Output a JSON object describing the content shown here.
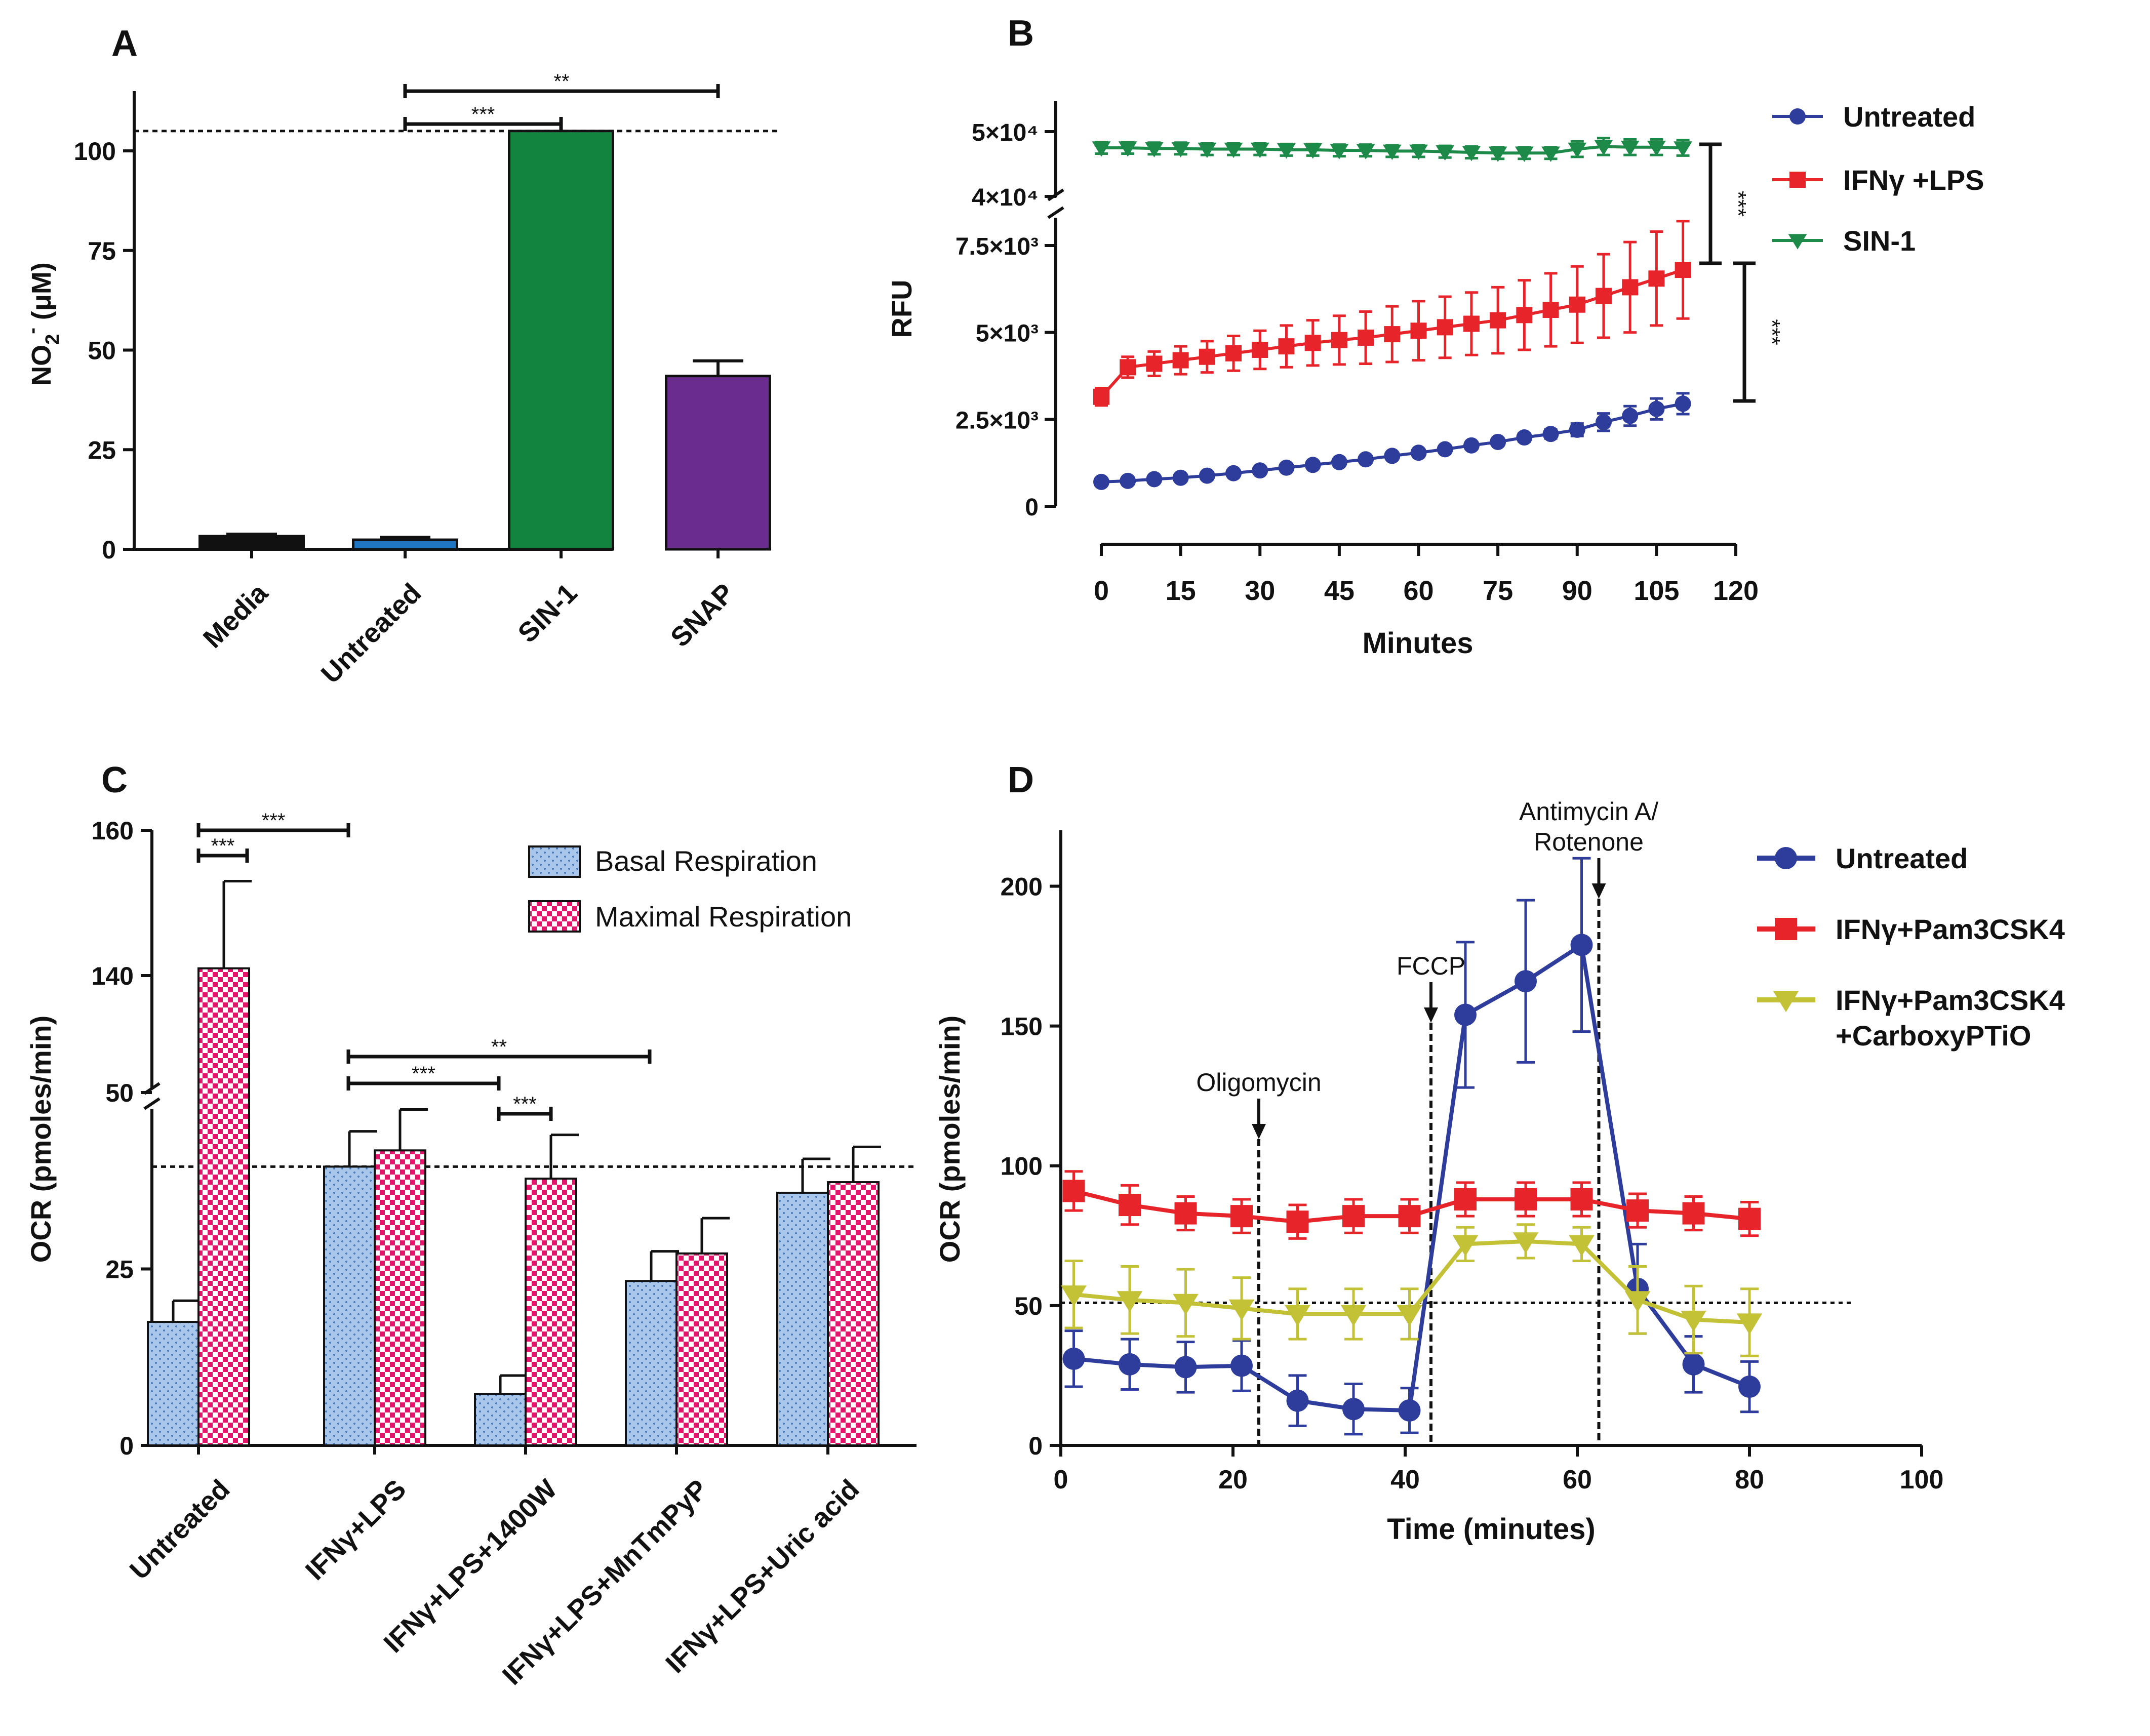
{
  "colors": {
    "black": "#111111",
    "blue": "#1F77C4",
    "green": "#12843F",
    "purple": "#6B2C8F",
    "navy": "#2E3C9C",
    "red": "#E8242B",
    "seagreen": "#1E8A4A",
    "olive": "#C3C237",
    "basal": "#A9C7EA",
    "maximal": "#E3146A"
  },
  "chart_data": [
    {
      "panel": "A",
      "type": "bar",
      "ylabel": "NO2- (μM)",
      "ylabel_main": "NO",
      "ylabel_sub": "2",
      "ylabel_sup": "-",
      "ylabel_unit": " (μM)",
      "ylim": [
        0,
        115
      ],
      "yticks": [
        0,
        25,
        50,
        75,
        100
      ],
      "categories": [
        "Media",
        "Untreated",
        "SIN-1",
        "SNAP"
      ],
      "values": [
        3.3,
        2.4,
        105,
        43.5
      ],
      "errors": [
        0.5,
        0.6,
        0,
        3.8
      ],
      "bar_colors": [
        "#111111",
        "#1F77C4",
        "#12843F",
        "#6B2C8F"
      ],
      "reference_line": 105,
      "significance": [
        {
          "from": "Untreated",
          "to": "SIN-1",
          "label": "***"
        },
        {
          "from": "Untreated",
          "to": "SNAP",
          "label": "**"
        }
      ]
    },
    {
      "panel": "B",
      "type": "line",
      "xlabel": "Minutes",
      "ylabel": "RFU",
      "xlim": [
        0,
        120
      ],
      "xticks": [
        0,
        15,
        30,
        45,
        60,
        75,
        90,
        105,
        120
      ],
      "axis_break": "between 7.5×10³ and 4×10⁴",
      "yticks_lower": [
        {
          "value": 0,
          "label": "0"
        },
        {
          "value": 2500,
          "label": "2.5×10³"
        },
        {
          "value": 5000,
          "label": "5×10³"
        },
        {
          "value": 7500,
          "label": "7.5×10³"
        }
      ],
      "yticks_upper": [
        {
          "value": 40000,
          "label": "4×10⁴"
        },
        {
          "value": 50000,
          "label": "5×10⁴"
        }
      ],
      "x": [
        0,
        5,
        10,
        15,
        20,
        25,
        30,
        35,
        40,
        45,
        50,
        55,
        60,
        65,
        70,
        75,
        80,
        85,
        90,
        95,
        100,
        105,
        110
      ],
      "series": [
        {
          "name": "Untreated",
          "marker": "circle",
          "values": [
            700,
            730,
            780,
            820,
            880,
            950,
            1030,
            1110,
            1190,
            1270,
            1350,
            1450,
            1540,
            1640,
            1750,
            1850,
            1980,
            2080,
            2200,
            2420,
            2600,
            2800,
            2950
          ],
          "errors": [
            60,
            60,
            60,
            60,
            60,
            70,
            70,
            70,
            70,
            80,
            80,
            80,
            90,
            90,
            100,
            100,
            120,
            130,
            180,
            250,
            280,
            300,
            300
          ]
        },
        {
          "name": "IFNγ +LPS",
          "marker": "square",
          "values": [
            3150,
            4000,
            4100,
            4200,
            4300,
            4400,
            4500,
            4600,
            4700,
            4780,
            4850,
            4950,
            5050,
            5150,
            5250,
            5350,
            5500,
            5650,
            5800,
            6050,
            6300,
            6550,
            6800
          ],
          "errors": [
            250,
            300,
            350,
            400,
            450,
            500,
            550,
            600,
            650,
            700,
            750,
            800,
            850,
            880,
            900,
            950,
            1000,
            1050,
            1100,
            1200,
            1300,
            1350,
            1400
          ]
        },
        {
          "name": "SIN-1",
          "marker": "triangle-down",
          "values": [
            47500,
            47500,
            47400,
            47400,
            47300,
            47300,
            47300,
            47200,
            47200,
            47100,
            47100,
            47000,
            47000,
            46900,
            46800,
            46700,
            46700,
            46700,
            47300,
            47700,
            47600,
            47600,
            47500
          ],
          "errors": [
            900,
            900,
            900,
            900,
            900,
            900,
            900,
            900,
            900,
            900,
            900,
            900,
            900,
            900,
            900,
            900,
            900,
            900,
            1200,
            1300,
            1200,
            1200,
            1200
          ]
        }
      ],
      "significance": [
        {
          "between": "SIN-1 and IFNγ +LPS",
          "label": "***"
        },
        {
          "between": "IFNγ +LPS and Untreated",
          "label": "***"
        }
      ]
    },
    {
      "panel": "C",
      "type": "bar",
      "ylabel": "OCR (pmoles/min)",
      "axis_break": "between 50 and 140",
      "yticks": [
        0,
        25,
        50,
        140,
        160
      ],
      "categories": [
        "Untreated",
        "IFNγ+LPS",
        "IFNγ+LPS+1400W",
        "IFNγ+LPS+MnTmPyP",
        "IFNγ+LPS+Uric acid"
      ],
      "series": [
        {
          "name": "Basal Respiration",
          "values": [
            17.5,
            39.5,
            7.3,
            23.3,
            35.8
          ],
          "errors": [
            3,
            5,
            2.6,
            4.2,
            4.8
          ]
        },
        {
          "name": "Maximal Respiration",
          "values": [
            141,
            41.8,
            37.8,
            27.2,
            37.3
          ],
          "errors": [
            12,
            5.8,
            6.2,
            5,
            5
          ]
        }
      ],
      "reference_line": 39.5,
      "significance": [
        {
          "comparison": "Untreated basal vs maximal",
          "label": "***"
        },
        {
          "comparison": "Untreated vs IFNγ+LPS",
          "label": "***"
        },
        {
          "comparison": "IFNγ+LPS vs IFNγ+LPS+MnTmPyP",
          "label": "**"
        },
        {
          "comparison": "IFNγ+LPS vs IFNγ+LPS+1400W",
          "label": "***"
        },
        {
          "comparison": "IFNγ+LPS+1400W basal vs maximal",
          "label": "***"
        }
      ]
    },
    {
      "panel": "D",
      "type": "line",
      "xlabel": "Time (minutes)",
      "ylabel": "OCR (pmoles/min)",
      "xlim": [
        0,
        100
      ],
      "ylim": [
        0,
        220
      ],
      "xticks": [
        0,
        20,
        40,
        60,
        80,
        100
      ],
      "yticks": [
        0,
        50,
        100,
        150,
        200
      ],
      "x": [
        1.5,
        8,
        14.5,
        21,
        27.5,
        34,
        40.5,
        47,
        54,
        60.5,
        67,
        73.5,
        80
      ],
      "series": [
        {
          "name": "Untreated",
          "marker": "circle",
          "values": [
            31,
            29,
            28,
            28.5,
            16,
            13,
            12.5,
            154,
            166,
            179,
            56,
            29,
            21
          ],
          "errors": [
            10,
            9,
            9,
            9,
            9,
            9,
            8,
            26,
            29,
            31,
            16,
            10,
            9
          ]
        },
        {
          "name": "IFNγ+Pam3CSK4",
          "marker": "square",
          "values": [
            91,
            86,
            83,
            82,
            80,
            82,
            82,
            88,
            88,
            88,
            84,
            83,
            81
          ],
          "errors": [
            7,
            7,
            6,
            6,
            6,
            6,
            6,
            6,
            6,
            6,
            6,
            6,
            6
          ]
        },
        {
          "name": "IFNγ+Pam3CSK4\n+CarboxyPTiO",
          "name_lines": [
            "IFNγ+Pam3CSK4",
            "+CarboxyPTiO"
          ],
          "marker": "triangle-down",
          "values": [
            54,
            52,
            51,
            49,
            47,
            47,
            47,
            72,
            73,
            72,
            52,
            45,
            44
          ],
          "errors": [
            12,
            12,
            12,
            11,
            9,
            9,
            9,
            6,
            6,
            6,
            12,
            12,
            12
          ]
        }
      ],
      "reference_line": 51,
      "annotations": [
        {
          "label": "Oligomycin",
          "x": 23
        },
        {
          "label": "FCCP",
          "x": 43
        },
        {
          "label_lines": [
            "Antimycin A/",
            "Rotenone"
          ],
          "x": 62.5
        }
      ]
    }
  ]
}
